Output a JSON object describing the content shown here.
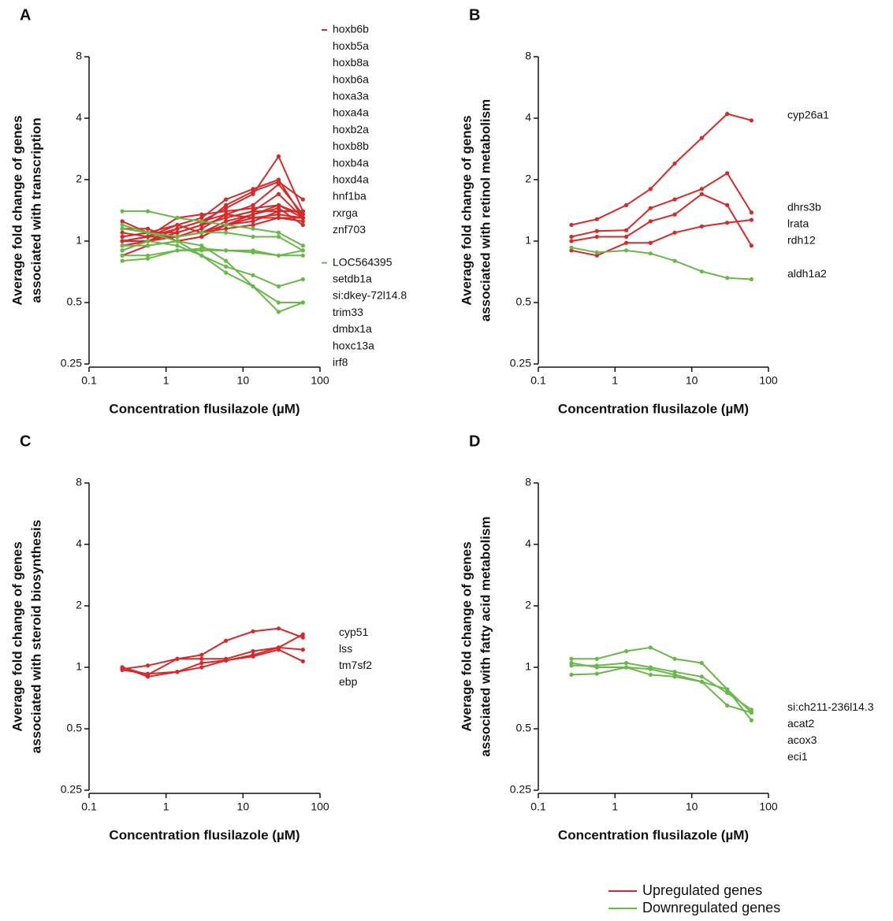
{
  "chart_data": [
    {
      "type": "line",
      "panel": "A",
      "xlabel": "Concentration flusilazole (µM)",
      "ylabel": [
        "Average fold change of genes",
        "associated with transcription"
      ],
      "xscale": "log",
      "yscale": "log",
      "xlim": [
        0.1,
        100
      ],
      "ylim": [
        0.25,
        8
      ],
      "xticks": [
        0.1,
        1,
        10,
        100
      ],
      "yticks": [
        0.25,
        0.5,
        1,
        2,
        4,
        8
      ],
      "x": [
        0.27,
        0.58,
        1.4,
        2.9,
        6,
        13.5,
        29,
        60
      ],
      "series": [
        {
          "name": "hoxb6b",
          "color": "#d62a2a",
          "values": [
            1.0,
            1.05,
            1.15,
            1.25,
            1.45,
            1.7,
            2.6,
            1.4
          ]
        },
        {
          "name": "hoxb5a",
          "color": "#d62a2a",
          "values": [
            0.95,
            1.0,
            1.1,
            1.2,
            1.5,
            1.75,
            1.95,
            1.6
          ]
        },
        {
          "name": "hoxb8a",
          "color": "#d62a2a",
          "values": [
            1.05,
            1.1,
            1.2,
            1.3,
            1.6,
            1.8,
            2.0,
            1.3
          ]
        },
        {
          "name": "hoxb6a",
          "color": "#d62a2a",
          "values": [
            0.9,
            1.0,
            1.05,
            1.15,
            1.35,
            1.5,
            1.9,
            1.35
          ]
        },
        {
          "name": "hoxa3a",
          "color": "#d62a2a",
          "values": [
            1.1,
            1.05,
            1.3,
            1.35,
            1.4,
            1.45,
            1.5,
            1.3
          ]
        },
        {
          "name": "hoxa4a",
          "color": "#d62a2a",
          "values": [
            1.0,
            1.0,
            1.1,
            1.2,
            1.3,
            1.4,
            1.7,
            1.3
          ]
        },
        {
          "name": "hoxb2a",
          "color": "#d62a2a",
          "values": [
            1.15,
            1.15,
            1.0,
            1.05,
            1.2,
            1.35,
            1.45,
            1.2
          ]
        },
        {
          "name": "hoxb8b",
          "color": "#d62a2a",
          "values": [
            1.05,
            1.1,
            1.1,
            1.2,
            1.3,
            1.4,
            1.4,
            1.4
          ]
        },
        {
          "name": "hoxb4a",
          "color": "#d62a2a",
          "values": [
            0.95,
            1.0,
            1.15,
            1.25,
            1.35,
            1.3,
            1.3,
            1.25
          ]
        },
        {
          "name": "hoxd4a",
          "color": "#d62a2a",
          "values": [
            1.0,
            1.05,
            1.2,
            1.1,
            1.25,
            1.35,
            1.5,
            1.35
          ]
        },
        {
          "name": "hnf1ba",
          "color": "#d62a2a",
          "values": [
            1.25,
            1.1,
            1.05,
            1.1,
            1.2,
            1.3,
            1.35,
            1.3
          ]
        },
        {
          "name": "rxrga",
          "color": "#d62a2a",
          "values": [
            0.85,
            0.95,
            1.0,
            1.05,
            1.2,
            1.25,
            1.4,
            1.4
          ]
        },
        {
          "name": "znf703",
          "color": "#d62a2a",
          "values": [
            1.0,
            1.05,
            1.05,
            1.1,
            1.15,
            1.2,
            1.3,
            1.3
          ]
        },
        {
          "name": "LOC564395",
          "color": "#6ab84a",
          "values": [
            1.4,
            1.4,
            1.3,
            1.25,
            1.2,
            1.15,
            1.1,
            0.95
          ]
        },
        {
          "name": "setdb1a",
          "color": "#6ab84a",
          "values": [
            1.15,
            1.1,
            1.05,
            1.1,
            1.1,
            1.05,
            1.05,
            0.9
          ]
        },
        {
          "name": "si:dkey-72l14.8",
          "color": "#6ab84a",
          "values": [
            0.95,
            0.95,
            1.0,
            0.85,
            0.75,
            0.68,
            0.6,
            0.65
          ]
        },
        {
          "name": "trim33",
          "color": "#6ab84a",
          "values": [
            0.8,
            0.82,
            0.9,
            0.92,
            0.9,
            0.88,
            0.85,
            0.85
          ]
        },
        {
          "name": "dmbx1a",
          "color": "#6ab84a",
          "values": [
            0.85,
            0.85,
            0.9,
            0.9,
            0.9,
            0.9,
            0.85,
            0.9
          ]
        },
        {
          "name": "hoxc13a",
          "color": "#6ab84a",
          "values": [
            1.2,
            1.1,
            1.0,
            0.95,
            0.8,
            0.6,
            0.45,
            0.5
          ]
        },
        {
          "name": "irf8",
          "color": "#6ab84a",
          "values": [
            0.9,
            1.0,
            0.95,
            0.85,
            0.7,
            0.6,
            0.5,
            0.5
          ]
        }
      ]
    },
    {
      "type": "line",
      "panel": "B",
      "xlabel": "Concentration flusilazole (µM)",
      "ylabel": [
        "Average fold change of genes",
        "associated with retinol metabolism"
      ],
      "xscale": "log",
      "yscale": "log",
      "xlim": [
        0.1,
        100
      ],
      "ylim": [
        0.25,
        8
      ],
      "xticks": [
        0.1,
        1,
        10,
        100
      ],
      "yticks": [
        0.25,
        0.5,
        1,
        2,
        4,
        8
      ],
      "x": [
        0.27,
        0.58,
        1.4,
        2.9,
        6,
        13.5,
        29,
        60
      ],
      "series": [
        {
          "name": "cyp26a1",
          "color": "#d62a2a",
          "values": [
            1.2,
            1.28,
            1.5,
            1.8,
            2.4,
            3.2,
            4.2,
            3.9
          ]
        },
        {
          "name": "dhrs3b",
          "color": "#d62a2a",
          "values": [
            1.05,
            1.12,
            1.13,
            1.45,
            1.6,
            1.8,
            2.15,
            1.38
          ]
        },
        {
          "name": "lrata",
          "color": "#d62a2a",
          "values": [
            0.9,
            0.85,
            0.98,
            0.98,
            1.1,
            1.18,
            1.23,
            1.27
          ]
        },
        {
          "name": "rdh12",
          "color": "#d62a2a",
          "values": [
            1.0,
            1.05,
            1.05,
            1.25,
            1.35,
            1.7,
            1.5,
            0.95
          ]
        },
        {
          "name": "aldh1a2",
          "color": "#6ab84a",
          "values": [
            0.93,
            0.88,
            0.9,
            0.87,
            0.8,
            0.71,
            0.66,
            0.65
          ]
        }
      ]
    },
    {
      "type": "line",
      "panel": "C",
      "xlabel": "Concentration flusilazole (µM)",
      "ylabel": [
        "Average fold change of genes",
        "associated with steroid biosynthesis"
      ],
      "xscale": "log",
      "yscale": "log",
      "xlim": [
        0.1,
        100
      ],
      "ylim": [
        0.25,
        8
      ],
      "xticks": [
        0.1,
        1,
        10,
        100
      ],
      "yticks": [
        0.25,
        0.5,
        1,
        2,
        4,
        8
      ],
      "x": [
        0.27,
        0.58,
        1.4,
        2.9,
        6,
        13.5,
        29,
        60
      ],
      "series": [
        {
          "name": "cyp51",
          "color": "#d62a2a",
          "values": [
            1.0,
            0.92,
            1.1,
            1.15,
            1.35,
            1.5,
            1.55,
            1.4
          ]
        },
        {
          "name": "lss",
          "color": "#d62a2a",
          "values": [
            0.98,
            1.02,
            1.1,
            1.1,
            1.1,
            1.2,
            1.25,
            1.45
          ]
        },
        {
          "name": "tm7sf2",
          "color": "#d62a2a",
          "values": [
            1.0,
            0.9,
            0.95,
            1.05,
            1.08,
            1.15,
            1.25,
            1.22
          ]
        },
        {
          "name": "ebp",
          "color": "#d62a2a",
          "values": [
            0.97,
            0.93,
            0.95,
            1.0,
            1.08,
            1.13,
            1.22,
            1.07
          ]
        }
      ]
    },
    {
      "type": "line",
      "panel": "D",
      "xlabel": "Concentration flusilazole (µM)",
      "ylabel": [
        "Average fold change of genes",
        "associated with fatty acid metabolism"
      ],
      "xscale": "log",
      "yscale": "log",
      "xlim": [
        0.1,
        100
      ],
      "ylim": [
        0.25,
        8
      ],
      "xticks": [
        0.1,
        1,
        10,
        100
      ],
      "yticks": [
        0.25,
        0.5,
        1,
        2,
        4,
        8
      ],
      "x": [
        0.27,
        0.58,
        1.4,
        2.9,
        6,
        13.5,
        29,
        60
      ],
      "series": [
        {
          "name": "si:ch211-236l14.3",
          "color": "#6ab84a",
          "values": [
            1.1,
            1.1,
            1.2,
            1.25,
            1.1,
            1.05,
            0.78,
            0.6
          ]
        },
        {
          "name": "acat2",
          "color": "#6ab84a",
          "values": [
            1.05,
            1.0,
            1.0,
            0.98,
            0.92,
            0.85,
            0.78,
            0.55
          ]
        },
        {
          "name": "acox3",
          "color": "#6ab84a",
          "values": [
            1.02,
            1.02,
            1.05,
            1.0,
            0.95,
            0.9,
            0.75,
            0.62
          ]
        },
        {
          "name": "eci1",
          "color": "#6ab84a",
          "values": [
            0.92,
            0.93,
            1.0,
            0.92,
            0.9,
            0.85,
            0.65,
            0.6
          ]
        }
      ]
    }
  ],
  "legend": [
    {
      "label": "Upregulated genes",
      "color": "#d62a2a"
    },
    {
      "label": "Downregulated genes",
      "color": "#6ab84a"
    }
  ]
}
